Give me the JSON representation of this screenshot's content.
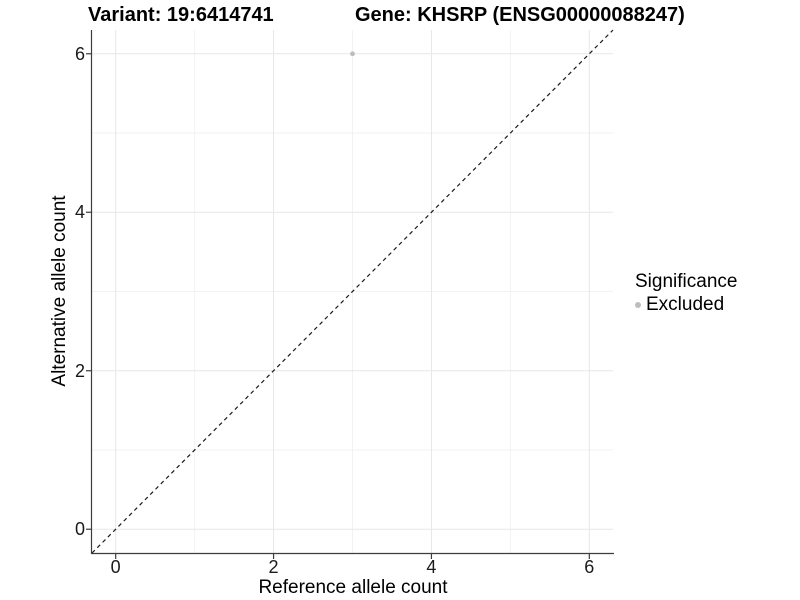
{
  "figure": {
    "title_variant": "Variant: 19:6414741",
    "title_gene": "Gene: KHSRP (ENSG00000088247)"
  },
  "chart_data": {
    "type": "scatter",
    "title": "Variant: 19:6414741        Gene: KHSRP (ENSG00000088247)",
    "xlabel": "Reference allele count",
    "ylabel": "Alternative allele count",
    "xlim": [
      -0.3,
      6.3
    ],
    "ylim": [
      -0.3,
      6.3
    ],
    "x_ticks": [
      0,
      2,
      4,
      6
    ],
    "y_ticks": [
      0,
      2,
      4,
      6
    ],
    "x_minor_ticks": [
      1,
      3,
      5
    ],
    "y_minor_ticks": [
      1,
      3,
      5
    ],
    "grid": true,
    "legend_position": "right",
    "points": [
      {
        "x": 3,
        "y": 6,
        "series": "Excluded"
      }
    ],
    "identity_line": {
      "style": "dashed",
      "slope": 1,
      "intercept": 0
    },
    "legend": {
      "title": "Significance",
      "entries": [
        {
          "label": "Excluded",
          "color": "#bdbdbd"
        }
      ]
    },
    "colors": {
      "point": "#bdbdbd",
      "grid_major": "#e7e7e7",
      "grid_minor": "#f2f2f2",
      "axis": "#3c3c3c",
      "identity_line": "#1a1a1a",
      "text": "#000000"
    }
  }
}
